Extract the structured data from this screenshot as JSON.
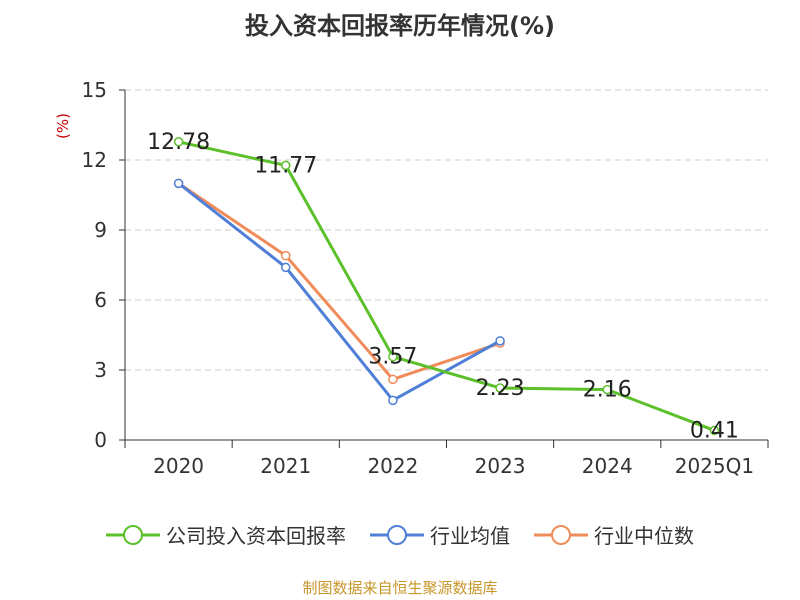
{
  "title": "投入资本回报率历年情况(%)",
  "source": "制图数据来自恒生聚源数据库",
  "colors": {
    "company": "#5cc02b",
    "industry_avg": "#4f7fd6",
    "industry_median": "#f08c5a",
    "unit": "#cc0000",
    "source": "#c8962a"
  },
  "chart_data": {
    "type": "line",
    "title": "投入资本回报率历年情况(%)",
    "xlabel": "",
    "ylabel": "(%)",
    "categories": [
      "2020",
      "2021",
      "2022",
      "2023",
      "2024",
      "2025Q1"
    ],
    "ylim": [
      0,
      15
    ],
    "yticks": [
      0,
      3,
      6,
      9,
      12,
      15
    ],
    "grid": true,
    "legend_position": "bottom",
    "series": [
      {
        "name": "公司投入资本回报率",
        "values": [
          12.78,
          11.77,
          3.57,
          2.23,
          2.16,
          0.41
        ],
        "data_labels": [
          "12.78",
          "11.77",
          "3.57",
          "2.23",
          "2.16",
          "0.41"
        ]
      },
      {
        "name": "行业均值",
        "values": [
          11.0,
          7.4,
          1.7,
          4.25,
          null,
          null
        ]
      },
      {
        "name": "行业中位数",
        "values": [
          11.0,
          7.9,
          2.6,
          4.15,
          null,
          null
        ]
      }
    ]
  }
}
